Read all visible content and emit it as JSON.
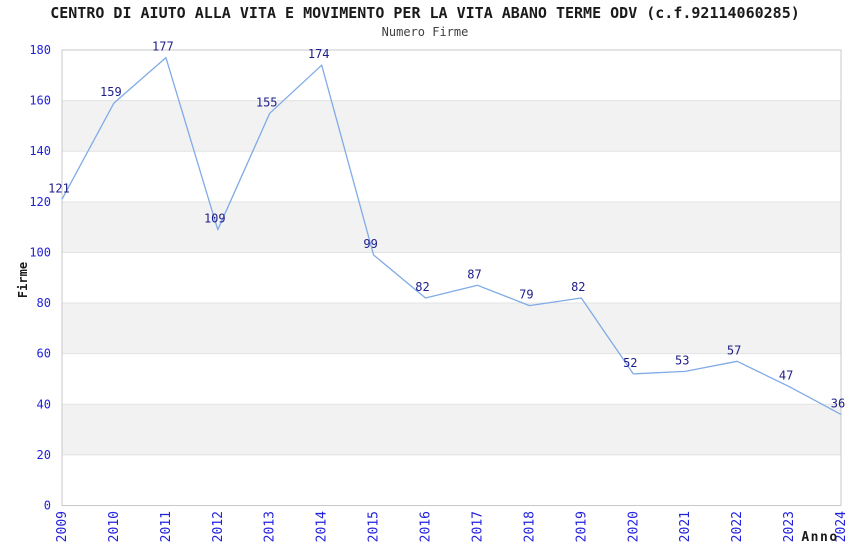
{
  "header": {
    "title": "CENTRO DI AIUTO ALLA VITA E MOVIMENTO PER LA VITA ABANO TERME ODV (c.f.92114060285)",
    "subtitle": "Numero Firme"
  },
  "chart_data": {
    "type": "line",
    "title": "CENTRO DI AIUTO ALLA VITA E MOVIMENTO PER LA VITA ABANO TERME ODV (c.f.92114060285)",
    "subtitle": "Numero Firme",
    "xlabel": "Anno",
    "ylabel": "Firme",
    "categories": [
      "2009",
      "2010",
      "2011",
      "2012",
      "2013",
      "2014",
      "2015",
      "2016",
      "2017",
      "2018",
      "2019",
      "2020",
      "2021",
      "2022",
      "2023",
      "2024"
    ],
    "values": [
      121,
      159,
      177,
      109,
      155,
      174,
      99,
      82,
      87,
      79,
      82,
      52,
      53,
      57,
      47,
      36
    ],
    "ylim": [
      0,
      180
    ],
    "ytick_step": 20,
    "yticks": [
      0,
      20,
      40,
      60,
      80,
      100,
      120,
      140,
      160,
      180
    ],
    "legend": "none",
    "grid": "alternating horizontal bands every 20 units with light gridlines",
    "point_labels_shown": true
  },
  "colors": {
    "background": "#ffffff",
    "line": "#80abe6",
    "data_label": "#1e1e8a",
    "tick_label": "#2222dd",
    "axis_title": "#1a1a1a",
    "band_gray": "#f2f2f2",
    "grid_line": "#e3e3e3",
    "plot_border": "#c8c8c8",
    "title": "#1a1a1a",
    "subtitle": "#404040"
  }
}
